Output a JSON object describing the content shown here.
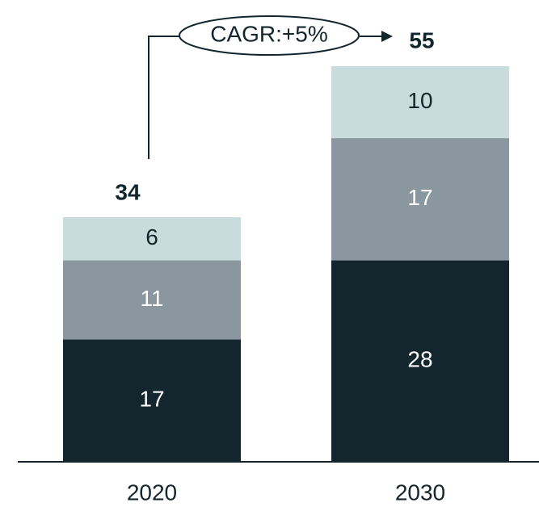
{
  "chart_data": {
    "type": "bar",
    "stacked": true,
    "categories": [
      "2020",
      "2030"
    ],
    "series": [
      {
        "color": "#13262e",
        "label_color": "#ffffff",
        "values": [
          17,
          28
        ]
      },
      {
        "color": "#8a979f",
        "label_color": "#ffffff",
        "values": [
          11,
          17
        ]
      },
      {
        "color": "#c8dcdd",
        "label_color": "#13262e",
        "values": [
          6,
          10
        ]
      }
    ],
    "totals": [
      34,
      55
    ],
    "annotation": "CAGR:+5%"
  }
}
